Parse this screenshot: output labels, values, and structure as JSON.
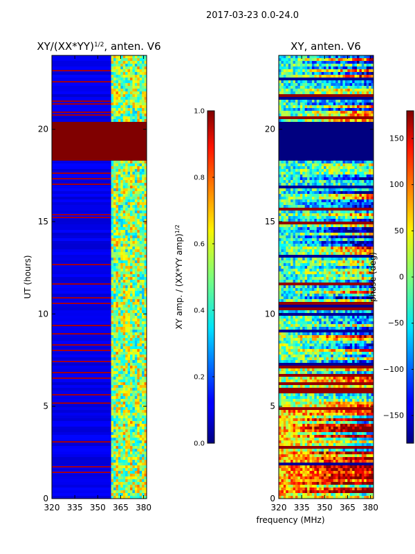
{
  "suptitle": "2017-03-23 0.0-24.0",
  "xlabel_shared": "frequency (MHz)",
  "chart_data": [
    {
      "type": "heatmap",
      "title": "XY/(XX*YY)",
      "title_exponent": "1/2",
      "title_suffix": ", anten. V6",
      "ylabel": "UT (hours)",
      "xlim": [
        320,
        382
      ],
      "ylim": [
        0,
        24
      ],
      "xticks": [
        "320",
        "335",
        "350",
        "365",
        "380"
      ],
      "xtick_values": [
        320,
        335,
        350,
        365,
        380
      ],
      "yticks": [
        "0",
        "5",
        "10",
        "15",
        "20"
      ],
      "ytick_values": [
        0,
        5,
        10,
        15,
        20
      ],
      "colormap": "jet",
      "colorbar": {
        "label": "XY amp. / (XX*YY amp)",
        "label_exponent": "1/2",
        "min": 0.0,
        "max": 1.0,
        "ticks": [
          "0.0",
          "0.2",
          "0.4",
          "0.6",
          "0.8",
          "1.0"
        ],
        "tick_values": [
          0.0,
          0.2,
          0.4,
          0.6,
          0.8,
          1.0
        ]
      },
      "features": {
        "saturated_band_hours": [
          18.3,
          20.4
        ],
        "bright_band_freq_mhz": [
          360,
          382
        ]
      }
    },
    {
      "type": "heatmap",
      "title": "XY, anten. V6",
      "ylabel": "",
      "xlim": [
        320,
        382
      ],
      "ylim": [
        0,
        24
      ],
      "xticks": [
        "320",
        "335",
        "350",
        "365",
        "380"
      ],
      "xtick_values": [
        320,
        335,
        350,
        365,
        380
      ],
      "yticks": [
        "0",
        "5",
        "10",
        "15",
        "20"
      ],
      "ytick_values": [
        0,
        5,
        10,
        15,
        20
      ],
      "colormap": "jet",
      "colorbar": {
        "label": "phase (deg)",
        "min": -180,
        "max": 180,
        "ticks": [
          "−150",
          "−100",
          "−50",
          "0",
          "50",
          "100",
          "150"
        ],
        "tick_values": [
          -150,
          -100,
          -50,
          0,
          50,
          100,
          150
        ]
      },
      "features": {
        "constant_band_hours": [
          18.3,
          20.4
        ]
      }
    }
  ]
}
